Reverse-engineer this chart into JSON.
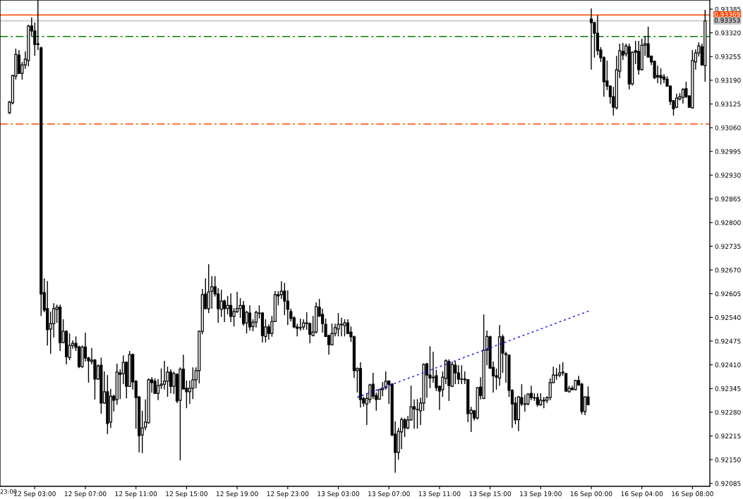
{
  "chart_data": {
    "type": "candlestick",
    "categories": [
      null,
      null,
      null,
      null,
      null,
      null,
      null,
      null,
      "12 Sep 03:00",
      null,
      null,
      null,
      null,
      null,
      null,
      null,
      null,
      null,
      null,
      null,
      null,
      null,
      null,
      null,
      "12 Sep 07:00",
      null,
      null,
      null,
      null,
      null,
      null,
      null,
      null,
      null,
      null,
      null,
      null,
      null,
      null,
      null,
      "12 Sep 11:00",
      null,
      null,
      null,
      null,
      null,
      null,
      null,
      null,
      null,
      null,
      null,
      null,
      null,
      null,
      null,
      "12 Sep 15:00",
      null,
      null,
      null,
      null,
      null,
      null,
      null,
      null,
      null,
      null,
      null,
      null,
      null,
      null,
      null,
      "12 Sep 19:00",
      null,
      null,
      null,
      null,
      null,
      null,
      null,
      null,
      null,
      null,
      null,
      null,
      null,
      null,
      null,
      "12 Sep 23:00",
      null,
      null,
      null,
      null,
      null,
      null,
      null,
      null,
      null,
      null,
      null,
      null,
      null,
      null,
      null,
      "13 Sep 03:00",
      null,
      null,
      null,
      null,
      null,
      null,
      null,
      null,
      null,
      null,
      null,
      null,
      null,
      null,
      null,
      "13 Sep 07:00",
      null,
      null,
      null,
      null,
      null,
      null,
      null,
      null,
      null,
      null,
      null,
      null,
      null,
      null,
      null,
      "13 Sep 11:00",
      null,
      null,
      null,
      null,
      null,
      null,
      null,
      null,
      null,
      null,
      null,
      null,
      null,
      null,
      null,
      "13 Sep 15:00",
      null,
      null,
      null,
      null,
      null,
      null,
      null,
      null,
      null,
      null,
      null,
      null,
      null,
      null,
      null,
      "13 Sep 19:00",
      null,
      null,
      null,
      null,
      null,
      null,
      null,
      null,
      null,
      null,
      null,
      null,
      null,
      null,
      null,
      "16 Sep 00:00",
      null,
      null,
      null,
      null,
      null,
      null,
      null,
      null,
      null,
      null,
      null,
      null,
      null,
      null,
      null,
      "16 Sep 04:00",
      null,
      null,
      null,
      null,
      null,
      null,
      null,
      null,
      null,
      null,
      null,
      null,
      null,
      null,
      null,
      "16 Sep 08:00",
      null,
      null,
      null,
      null
    ],
    "ohlc": [
      [
        0.93101,
        0.93134,
        0.93097,
        0.9313
      ],
      [
        0.93128,
        0.93205,
        0.93124,
        0.93203
      ],
      [
        0.93201,
        0.93277,
        0.93192,
        0.93261
      ],
      [
        0.93259,
        0.93273,
        0.93207,
        0.93209
      ],
      [
        0.93209,
        0.9324,
        0.93192,
        0.93232
      ],
      [
        0.93232,
        0.93269,
        0.93221,
        0.93248
      ],
      [
        0.93244,
        0.93342,
        0.93228,
        0.93339
      ],
      [
        0.93339,
        0.93362,
        0.93311,
        0.93325
      ],
      [
        0.93325,
        0.93348,
        0.93257,
        0.93288
      ],
      [
        0.9329,
        0.9341,
        0.93273,
        0.93288
      ],
      [
        0.93279,
        0.93282,
        0.92544,
        0.92604
      ],
      [
        0.92608,
        0.92647,
        0.92554,
        0.9256
      ],
      [
        0.92564,
        0.92639,
        0.92463,
        0.92506
      ],
      [
        0.92508,
        0.92556,
        0.9244,
        0.92523
      ],
      [
        0.92523,
        0.92579,
        0.92485,
        0.92564
      ],
      [
        0.92562,
        0.92575,
        0.92525,
        0.92568
      ],
      [
        0.92568,
        0.92575,
        0.92448,
        0.92471
      ],
      [
        0.92471,
        0.92535,
        0.92469,
        0.92502
      ],
      [
        0.92502,
        0.92505,
        0.92411,
        0.92432
      ],
      [
        0.9243,
        0.92496,
        0.92423,
        0.92463
      ],
      [
        0.92463,
        0.92477,
        0.92454,
        0.92469
      ],
      [
        0.92469,
        0.92488,
        0.92448,
        0.92458
      ],
      [
        0.92459,
        0.92463,
        0.92401,
        0.92405
      ],
      [
        0.92405,
        0.92463,
        0.92401,
        0.92459
      ],
      [
        0.92459,
        0.92498,
        0.92419,
        0.92429
      ],
      [
        0.92429,
        0.92432,
        0.92361,
        0.92421
      ],
      [
        0.92419,
        0.92456,
        0.92411,
        0.92423
      ],
      [
        0.92423,
        0.92426,
        0.92315,
        0.92371
      ],
      [
        0.92371,
        0.92411,
        0.92369,
        0.92407
      ],
      [
        0.92409,
        0.9243,
        0.92276,
        0.92305
      ],
      [
        0.92305,
        0.92392,
        0.92303,
        0.92336
      ],
      [
        0.92336,
        0.92382,
        0.9222,
        0.92249
      ],
      [
        0.92253,
        0.92344,
        0.92237,
        0.92324
      ],
      [
        0.92324,
        0.92328,
        0.92282,
        0.92313
      ],
      [
        0.92315,
        0.92413,
        0.92301,
        0.9239
      ],
      [
        0.92388,
        0.92398,
        0.92316,
        0.92384
      ],
      [
        0.92386,
        0.92436,
        0.92357,
        0.92417
      ],
      [
        0.92417,
        0.9242,
        0.92318,
        0.92351
      ],
      [
        0.92351,
        0.92448,
        0.92349,
        0.92438
      ],
      [
        0.92438,
        0.92441,
        0.92342,
        0.92363
      ],
      [
        0.92365,
        0.92368,
        0.92235,
        0.9232
      ],
      [
        0.92322,
        0.92324,
        0.9217,
        0.92216
      ],
      [
        0.92218,
        0.92284,
        0.92168,
        0.92237
      ],
      [
        0.92239,
        0.92315,
        0.92231,
        0.92253
      ],
      [
        0.92251,
        0.92373,
        0.92249,
        0.92369
      ],
      [
        0.92369,
        0.92376,
        0.92334,
        0.92361
      ],
      [
        0.92365,
        0.92373,
        0.9233,
        0.92332
      ],
      [
        0.92332,
        0.92371,
        0.92313,
        0.92353
      ],
      [
        0.92353,
        0.924,
        0.92344,
        0.92357
      ],
      [
        0.92357,
        0.92421,
        0.92342,
        0.92365
      ],
      [
        0.92365,
        0.92405,
        0.92322,
        0.9239
      ],
      [
        0.9239,
        0.92398,
        0.92332,
        0.92351
      ],
      [
        0.92351,
        0.92392,
        0.9233,
        0.92386
      ],
      [
        0.92384,
        0.92387,
        0.92305,
        0.92311
      ],
      [
        0.92313,
        0.92403,
        0.92148,
        0.92398
      ],
      [
        0.92398,
        0.92438,
        0.92342,
        0.92344
      ],
      [
        0.92346,
        0.92367,
        0.92291,
        0.92336
      ],
      [
        0.92336,
        0.92367,
        0.92303,
        0.92346
      ],
      [
        0.92346,
        0.92403,
        0.92316,
        0.92369
      ],
      [
        0.92369,
        0.92403,
        0.92346,
        0.92394
      ],
      [
        0.92394,
        0.92504,
        0.92359,
        0.92502
      ],
      [
        0.92502,
        0.92618,
        0.92494,
        0.92602
      ],
      [
        0.92604,
        0.92647,
        0.92562,
        0.92564
      ],
      [
        0.92564,
        0.92686,
        0.92552,
        0.9261
      ],
      [
        0.92612,
        0.92653,
        0.92564,
        0.92624
      ],
      [
        0.92624,
        0.92653,
        0.92597,
        0.92604
      ],
      [
        0.92604,
        0.9262,
        0.92525,
        0.92564
      ],
      [
        0.92562,
        0.92616,
        0.92541,
        0.92585
      ],
      [
        0.92585,
        0.92589,
        0.92527,
        0.92564
      ],
      [
        0.92564,
        0.92599,
        0.92548,
        0.92573
      ],
      [
        0.92573,
        0.92606,
        0.92527,
        0.92543
      ],
      [
        0.92543,
        0.92566,
        0.92515,
        0.92556
      ],
      [
        0.92556,
        0.9261,
        0.92552,
        0.92564
      ],
      [
        0.92564,
        0.92593,
        0.92539,
        0.92573
      ],
      [
        0.92573,
        0.92585,
        0.92517,
        0.92523
      ],
      [
        0.92525,
        0.92558,
        0.92496,
        0.92554
      ],
      [
        0.92552,
        0.92573,
        0.92504,
        0.92514
      ],
      [
        0.92515,
        0.92535,
        0.92502,
        0.92527
      ],
      [
        0.92527,
        0.92558,
        0.92512,
        0.92554
      ],
      [
        0.92552,
        0.92573,
        0.92537,
        0.92551
      ],
      [
        0.92552,
        0.92554,
        0.92471,
        0.9249
      ],
      [
        0.92488,
        0.92535,
        0.92471,
        0.92514
      ],
      [
        0.92514,
        0.92521,
        0.92479,
        0.92496
      ],
      [
        0.92496,
        0.92544,
        0.92487,
        0.92529
      ],
      [
        0.92529,
        0.92612,
        0.92527,
        0.92602
      ],
      [
        0.92602,
        0.92612,
        0.92573,
        0.92599
      ],
      [
        0.92602,
        0.92639,
        0.92591,
        0.92612
      ],
      [
        0.92612,
        0.92635,
        0.92546,
        0.92585
      ],
      [
        0.92585,
        0.92614,
        0.92519,
        0.92562
      ],
      [
        0.92556,
        0.92564,
        0.92529,
        0.92537
      ],
      [
        0.92539,
        0.92543,
        0.9251,
        0.92514
      ],
      [
        0.92514,
        0.92523,
        0.92488,
        0.9251
      ],
      [
        0.92512,
        0.92537,
        0.92504,
        0.92511
      ],
      [
        0.92514,
        0.92535,
        0.92506,
        0.92525
      ],
      [
        0.92525,
        0.92554,
        0.92506,
        0.92523
      ],
      [
        0.92523,
        0.92526,
        0.92469,
        0.92494
      ],
      [
        0.9249,
        0.92544,
        0.92488,
        0.925
      ],
      [
        0.925,
        0.92581,
        0.92496,
        0.9257
      ],
      [
        0.92568,
        0.92591,
        0.92541,
        0.92544
      ],
      [
        0.92548,
        0.92564,
        0.92498,
        0.92523
      ],
      [
        0.92521,
        0.92537,
        0.92486,
        0.92488
      ],
      [
        0.9249,
        0.92493,
        0.92438,
        0.92465
      ],
      [
        0.92465,
        0.92523,
        0.92463,
        0.92496
      ],
      [
        0.92496,
        0.92523,
        0.92488,
        0.92512
      ],
      [
        0.92508,
        0.92552,
        0.92488,
        0.92521
      ],
      [
        0.92521,
        0.92539,
        0.92488,
        0.9252
      ],
      [
        0.92517,
        0.92535,
        0.92488,
        0.92525
      ],
      [
        0.92525,
        0.92535,
        0.92494,
        0.92496
      ],
      [
        0.925,
        0.92515,
        0.92473,
        0.92487
      ],
      [
        0.92487,
        0.9249,
        0.92374,
        0.92394
      ],
      [
        0.92394,
        0.92403,
        0.92334,
        0.924
      ],
      [
        0.924,
        0.92417,
        0.92293,
        0.92315
      ],
      [
        0.92318,
        0.92322,
        0.92295,
        0.92305
      ],
      [
        0.92303,
        0.92332,
        0.92245,
        0.92318
      ],
      [
        0.92315,
        0.92358,
        0.92305,
        0.92355
      ],
      [
        0.92357,
        0.92388,
        0.92316,
        0.92324
      ],
      [
        0.92326,
        0.92334,
        0.92284,
        0.92315
      ],
      [
        0.92316,
        0.92344,
        0.92315,
        0.92342
      ],
      [
        0.92342,
        0.92363,
        0.92324,
        0.92346
      ],
      [
        0.92347,
        0.92392,
        0.92342,
        0.92365
      ],
      [
        0.92365,
        0.92368,
        0.92303,
        0.92357
      ],
      [
        0.92357,
        0.9236,
        0.92214,
        0.92218
      ],
      [
        0.9222,
        0.92255,
        0.92114,
        0.9217
      ],
      [
        0.9217,
        0.92237,
        0.9215,
        0.92228
      ],
      [
        0.92226,
        0.92266,
        0.92179,
        0.9226
      ],
      [
        0.9226,
        0.92264,
        0.92212,
        0.92237
      ],
      [
        0.92237,
        0.9227,
        0.92233,
        0.92259
      ],
      [
        0.92259,
        0.92353,
        0.92257,
        0.92295
      ],
      [
        0.92295,
        0.92315,
        0.92235,
        0.92289
      ],
      [
        0.92288,
        0.92316,
        0.92235,
        0.92287
      ],
      [
        0.92284,
        0.9232,
        0.92245,
        0.92305
      ],
      [
        0.92305,
        0.92414,
        0.92284,
        0.92411
      ],
      [
        0.92413,
        0.92415,
        0.9232,
        0.92382
      ],
      [
        0.92382,
        0.92461,
        0.92346,
        0.92374
      ],
      [
        0.92376,
        0.92446,
        0.92361,
        0.92375
      ],
      [
        0.9238,
        0.92396,
        0.92338,
        0.92347
      ],
      [
        0.92351,
        0.92353,
        0.92286,
        0.92338
      ],
      [
        0.92342,
        0.92392,
        0.92322,
        0.92376
      ],
      [
        0.92373,
        0.92425,
        0.92357,
        0.92421
      ],
      [
        0.92419,
        0.92425,
        0.92311,
        0.92353
      ],
      [
        0.92351,
        0.92419,
        0.92349,
        0.92411
      ],
      [
        0.92409,
        0.92419,
        0.92357,
        0.92388
      ],
      [
        0.92388,
        0.92409,
        0.92357,
        0.92371
      ],
      [
        0.92371,
        0.92409,
        0.92357,
        0.9237
      ],
      [
        0.92371,
        0.92392,
        0.92357,
        0.92369
      ],
      [
        0.92369,
        0.92371,
        0.92253,
        0.92276
      ],
      [
        0.92276,
        0.92295,
        0.92226,
        0.92286
      ],
      [
        0.92284,
        0.92286,
        0.92257,
        0.92264
      ],
      [
        0.92264,
        0.92349,
        0.9226,
        0.92347
      ],
      [
        0.92349,
        0.92376,
        0.92315,
        0.92326
      ],
      [
        0.92318,
        0.92548,
        0.92316,
        0.9245
      ],
      [
        0.9245,
        0.92504,
        0.92409,
        0.92488
      ],
      [
        0.92487,
        0.9249,
        0.92399,
        0.92401
      ],
      [
        0.92403,
        0.92419,
        0.92334,
        0.9238
      ],
      [
        0.9238,
        0.924,
        0.92342,
        0.92376
      ],
      [
        0.92374,
        0.92519,
        0.92353,
        0.92487
      ],
      [
        0.92487,
        0.92493,
        0.92388,
        0.92442
      ],
      [
        0.9244,
        0.92446,
        0.92361,
        0.92438
      ],
      [
        0.92436,
        0.92439,
        0.92322,
        0.9234
      ],
      [
        0.9234,
        0.92343,
        0.92237,
        0.92303
      ],
      [
        0.92305,
        0.92322,
        0.92247,
        0.92259
      ],
      [
        0.9226,
        0.92325,
        0.92228,
        0.92322
      ],
      [
        0.9232,
        0.92357,
        0.92297,
        0.92303
      ],
      [
        0.92303,
        0.92328,
        0.92282,
        0.92302
      ],
      [
        0.92303,
        0.92332,
        0.92299,
        0.9233
      ],
      [
        0.92332,
        0.92353,
        0.92313,
        0.9232
      ],
      [
        0.9232,
        0.92332,
        0.92311,
        0.92319
      ],
      [
        0.9232,
        0.92332,
        0.92295,
        0.92301
      ],
      [
        0.92301,
        0.92332,
        0.92297,
        0.92313
      ],
      [
        0.92313,
        0.92322,
        0.92291,
        0.92311
      ],
      [
        0.92313,
        0.92324,
        0.92305,
        0.9232
      ],
      [
        0.9232,
        0.92373,
        0.92313,
        0.92361
      ],
      [
        0.92361,
        0.92405,
        0.9236,
        0.92382
      ],
      [
        0.92382,
        0.92401,
        0.92369,
        0.92381
      ],
      [
        0.92382,
        0.92411,
        0.92376,
        0.92388
      ],
      [
        0.9239,
        0.92417,
        0.9238,
        0.92388
      ],
      [
        0.92386,
        0.92388,
        0.92336,
        0.92338
      ],
      [
        0.92336,
        0.92353,
        0.92334,
        0.92346
      ],
      [
        0.92346,
        0.92353,
        0.92341,
        0.92342
      ],
      [
        0.92342,
        0.92369,
        0.9234,
        0.92367
      ],
      [
        0.92367,
        0.9238,
        0.92353,
        0.92355
      ],
      [
        0.92357,
        0.92361,
        0.92274,
        0.92282
      ],
      [
        0.92282,
        0.92324,
        0.92272,
        0.92322
      ],
      [
        0.92322,
        0.92351,
        0.92299,
        0.92301
      ],
      [
        0.93358,
        0.93387,
        0.93219,
        0.93348
      ],
      [
        0.93348,
        0.9335,
        0.93252,
        0.93319
      ],
      [
        0.93319,
        0.93369,
        0.93259,
        0.93271
      ],
      [
        0.93273,
        0.93281,
        0.9324,
        0.93252
      ],
      [
        0.93252,
        0.93256,
        0.93145,
        0.93186
      ],
      [
        0.93188,
        0.93244,
        0.93163,
        0.93174
      ],
      [
        0.93174,
        0.93176,
        0.93126,
        0.93145
      ],
      [
        0.93145,
        0.93172,
        0.93093,
        0.93116
      ],
      [
        0.93114,
        0.93257,
        0.9311,
        0.93219
      ],
      [
        0.93215,
        0.9329,
        0.93196,
        0.93271
      ],
      [
        0.93269,
        0.93292,
        0.93246,
        0.93259
      ],
      [
        0.93263,
        0.9329,
        0.93255,
        0.93284
      ],
      [
        0.93282,
        0.9329,
        0.93165,
        0.9318
      ],
      [
        0.9318,
        0.93269,
        0.93176,
        0.93267
      ],
      [
        0.93271,
        0.93298,
        0.93234,
        0.93267
      ],
      [
        0.93269,
        0.93298,
        0.93205,
        0.93219
      ],
      [
        0.93219,
        0.93304,
        0.93217,
        0.93286
      ],
      [
        0.93286,
        0.93311,
        0.93257,
        0.9329
      ],
      [
        0.9329,
        0.93337,
        0.93252,
        0.93254
      ],
      [
        0.93256,
        0.93258,
        0.93232,
        0.9324
      ],
      [
        0.93242,
        0.93244,
        0.93193,
        0.93197
      ],
      [
        0.93203,
        0.9323,
        0.93182,
        0.93199
      ],
      [
        0.93203,
        0.93223,
        0.93178,
        0.93197
      ],
      [
        0.93199,
        0.93207,
        0.93182,
        0.93193
      ],
      [
        0.93193,
        0.93201,
        0.93172,
        0.93174
      ],
      [
        0.93174,
        0.93176,
        0.93122,
        0.93132
      ],
      [
        0.93134,
        0.93136,
        0.93093,
        0.93112
      ],
      [
        0.93116,
        0.93153,
        0.93114,
        0.93141
      ],
      [
        0.93139,
        0.93155,
        0.93135,
        0.93145
      ],
      [
        0.93143,
        0.93169,
        0.93126,
        0.93165
      ],
      [
        0.93167,
        0.93186,
        0.93141,
        0.93145
      ],
      [
        0.93147,
        0.93149,
        0.93114,
        0.93116
      ],
      [
        0.93114,
        0.93273,
        0.93112,
        0.93244
      ],
      [
        0.9324,
        0.93275,
        0.93219,
        0.93265
      ],
      [
        0.93265,
        0.93294,
        0.93255,
        0.93284
      ],
      [
        0.93282,
        0.9329,
        0.9323,
        0.93232
      ],
      [
        0.9323,
        0.93383,
        0.93186,
        0.93353
      ]
    ],
    "series": [
      {
        "type": "line",
        "color": "#0000ff",
        "line_style": "dotted",
        "values": [
          null,
          null,
          null,
          null,
          null,
          null,
          null,
          null,
          null,
          null,
          null,
          null,
          null,
          null,
          null,
          null,
          null,
          null,
          null,
          null,
          null,
          null,
          null,
          null,
          null,
          null,
          null,
          null,
          null,
          null,
          null,
          null,
          null,
          null,
          null,
          null,
          null,
          null,
          null,
          null,
          null,
          null,
          null,
          null,
          null,
          null,
          null,
          null,
          null,
          null,
          null,
          null,
          null,
          null,
          null,
          null,
          null,
          null,
          null,
          null,
          null,
          null,
          null,
          null,
          null,
          null,
          null,
          null,
          null,
          null,
          null,
          null,
          null,
          null,
          null,
          null,
          null,
          null,
          null,
          null,
          null,
          null,
          null,
          null,
          null,
          null,
          null,
          null,
          null,
          null,
          null,
          null,
          null,
          null,
          null,
          null,
          null,
          null,
          null,
          null,
          null,
          null,
          null,
          null,
          null,
          null,
          null,
          null,
          null,
          null,
          0.92321,
          null,
          null,
          null,
          null,
          null,
          null,
          null,
          null,
          null,
          null,
          null,
          null,
          null,
          null,
          null,
          null,
          null,
          null,
          null,
          null,
          null,
          null,
          null,
          null,
          null,
          null,
          null,
          null,
          null,
          null,
          null,
          null,
          null,
          null,
          null,
          null,
          null,
          null,
          null,
          null,
          null,
          null,
          null,
          null,
          null,
          null,
          null,
          null,
          null,
          null,
          null,
          null,
          null,
          null,
          null,
          null,
          null,
          null,
          null,
          null,
          null,
          null,
          null,
          null,
          null,
          null,
          null,
          null,
          null,
          null,
          null,
          null,
          null,
          0.9256,
          null,
          null,
          null,
          null,
          null,
          null,
          null,
          null,
          null,
          null,
          null,
          null,
          null,
          null,
          null,
          null,
          null,
          null,
          null,
          null,
          null,
          null,
          null,
          null,
          null,
          null,
          null,
          null,
          null,
          null,
          null,
          null,
          null,
          null,
          null,
          null
        ]
      }
    ],
    "ylim": [
      0.92077,
      0.9341
    ],
    "yticks": [
      0.93385,
      {
        "value": 0.9332,
        "label": "0.93320"
      },
      0.93255,
      {
        "value": 0.9319,
        "label": "0.93190"
      },
      0.93125,
      {
        "value": 0.9306,
        "label": "0.93060"
      },
      0.92995,
      {
        "value": 0.9293,
        "label": "0.92930"
      },
      0.92865,
      {
        "value": 0.928,
        "label": "0.92800"
      },
      0.92735,
      {
        "value": 0.9267,
        "label": "0.92670"
      },
      0.92605,
      {
        "value": 0.9254,
        "label": "0.92540"
      },
      0.92475,
      {
        "value": 0.9241,
        "label": "0.92410"
      },
      0.92345,
      {
        "value": 0.9228,
        "label": "0.92280"
      },
      0.92215,
      {
        "value": 0.9215,
        "label": "0.92150"
      },
      0.92085
    ],
    "ref_lines": [
      {
        "axis": "y",
        "value": 0.93369,
        "label": "0.93369",
        "color": "#ff4500"
      },
      {
        "axis": "y",
        "value": 0.93353,
        "label": "0.93353",
        "color": "#c0c0c0"
      },
      {
        "axis": "y",
        "value": 0.9331,
        "color": "#008000",
        "line_style": "dashed"
      },
      {
        "axis": "y",
        "value": 0.9307,
        "color": "#ff4500",
        "line_style": "dashed"
      }
    ],
    "annotations": [
      "23:00"
    ],
    "grid": false,
    "legend": false
  }
}
